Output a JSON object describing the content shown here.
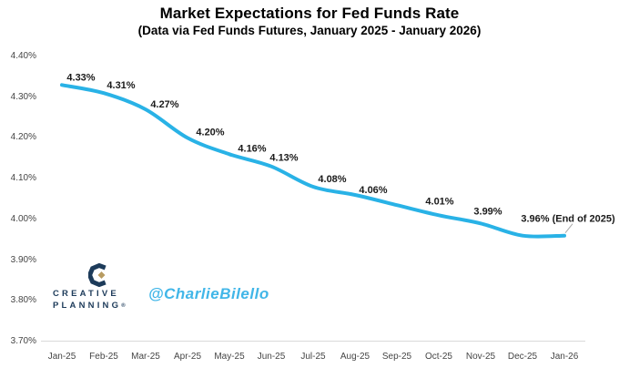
{
  "title": "Market Expectations for Fed Funds Rate",
  "subtitle": "(Data via Fed Funds Futures, January 2025 - January 2026)",
  "watermark": {
    "brand_line1": "CREATIVE",
    "brand_line2": "PLANNING",
    "reg_mark": "®",
    "handle": "@CharlieBilello"
  },
  "colors": {
    "line": "#29b2e6",
    "handle_text": "#41b6e8",
    "brand_navy": "#1d3b5a",
    "brand_gold": "#b79b61",
    "data_label": "#1a1a1a",
    "axis_text": "#454545",
    "axis_line": "#d9d9d9",
    "leader_line": "#a8a8a8",
    "background": "#ffffff"
  },
  "chart_data": {
    "type": "line",
    "title": "Market Expectations for Fed Funds Rate",
    "subtitle": "(Data via Fed Funds Futures, January 2025 - January 2026)",
    "categories": [
      "Jan-25",
      "Feb-25",
      "Mar-25",
      "Apr-25",
      "May-25",
      "Jun-25",
      "Jul-25",
      "Aug-25",
      "Sep-25",
      "Oct-25",
      "Nov-25",
      "Dec-25",
      "Jan-26"
    ],
    "values": [
      4.33,
      4.31,
      4.27,
      4.2,
      4.16,
      4.13,
      4.08,
      4.06,
      4.035,
      4.01,
      3.99,
      3.96,
      3.96
    ],
    "point_labels": [
      "4.33%",
      "4.31%",
      "4.27%",
      "4.20%",
      "4.16%",
      "4.13%",
      "4.08%",
      "4.06%",
      "",
      "4.01%",
      "3.99%",
      "",
      "3.96% (End of 2025)"
    ],
    "end_annotation": "3.96% (End of 2025)",
    "xlabel": "",
    "ylabel": "",
    "ylim": [
      3.7,
      4.4
    ],
    "ytick_step": 0.1,
    "ytick_labels": [
      "4.40%",
      "4.30%",
      "4.20%",
      "4.10%",
      "4.00%",
      "3.90%",
      "3.80%",
      "3.70%"
    ],
    "ytick_values": [
      4.4,
      4.3,
      4.2,
      4.1,
      4.0,
      3.9,
      3.8,
      3.7
    ],
    "grid": "off",
    "legend": "none",
    "line_smoothed": true
  }
}
